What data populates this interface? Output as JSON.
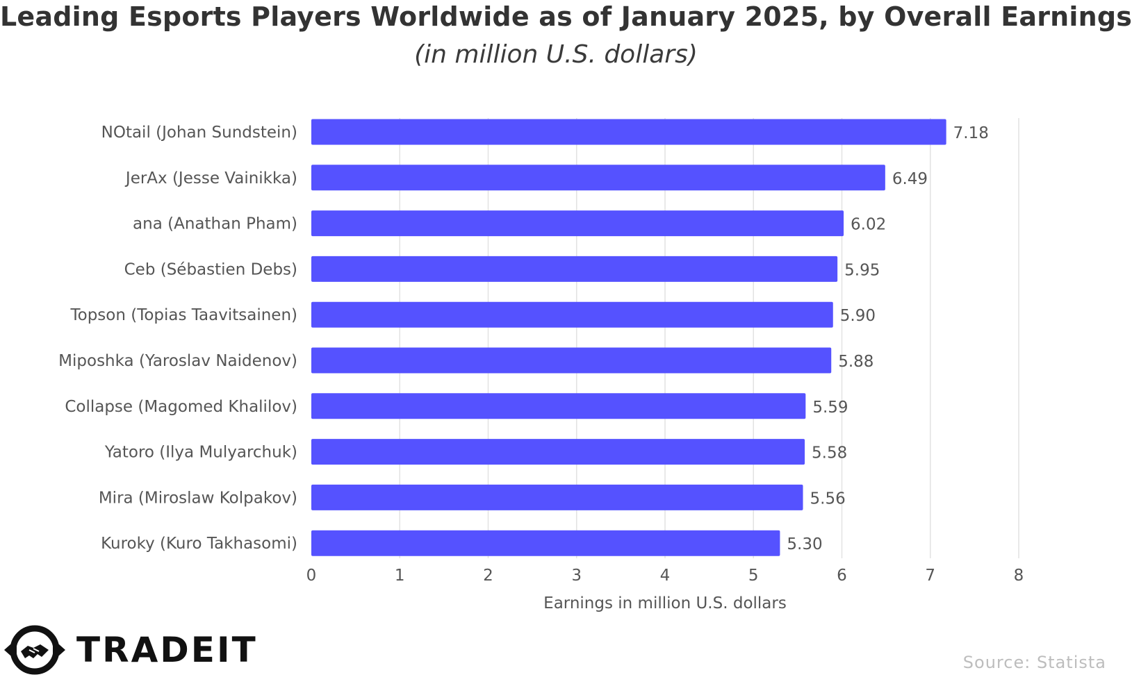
{
  "title": "Leading Esports Players Worldwide as of January 2025, by Overall Earnings",
  "subtitle": "(in million U.S. dollars)",
  "source": "Source: Statista",
  "logo": {
    "text": "TRADEIT",
    "icon": "handshake-icon"
  },
  "colors": {
    "bar": "#5552FF",
    "grid": "#e2e2e2",
    "text": "#555555"
  },
  "chart_data": {
    "type": "bar",
    "orientation": "horizontal",
    "categories": [
      "NOtail (Johan Sundstein)",
      "JerAx (Jesse Vainikka)",
      "ana (Anathan Pham)",
      "Ceb (Sébastien Debs)",
      "Topson (Topias Taavitsainen)",
      "Miposhka (Yaroslav Naidenov)",
      "Collapse (Magomed Khalilov)",
      "Yatoro (Ilya Mulyarchuk)",
      "Mira (Miroslaw Kolpakov)",
      "Kuroky (Kuro Takhasomi)"
    ],
    "values": [
      7.18,
      6.49,
      6.02,
      5.95,
      5.9,
      5.88,
      5.59,
      5.58,
      5.56,
      5.3
    ],
    "value_labels": [
      "7.18",
      "6.49",
      "6.02",
      "5.95",
      "5.90",
      "5.88",
      "5.59",
      "5.58",
      "5.56",
      "5.30"
    ],
    "xlabel": "Earnings in million U.S. dollars",
    "xlim": [
      0,
      8
    ],
    "xticks": [
      "0",
      "1",
      "2",
      "3",
      "4",
      "5",
      "6",
      "7",
      "8"
    ],
    "grid": true
  }
}
